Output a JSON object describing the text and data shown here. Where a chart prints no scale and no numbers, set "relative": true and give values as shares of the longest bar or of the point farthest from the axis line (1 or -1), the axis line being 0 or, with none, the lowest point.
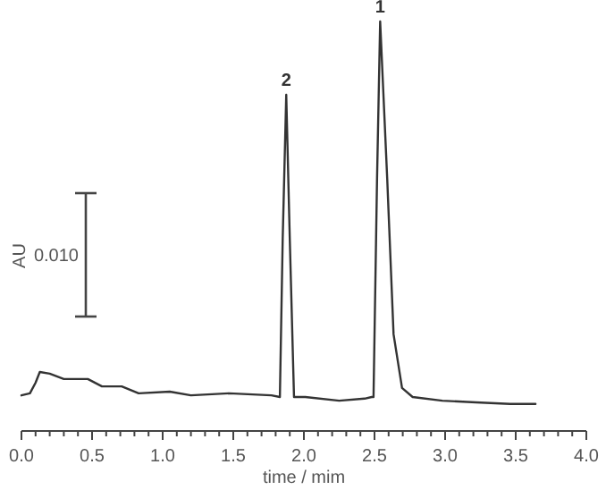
{
  "chart_data": {
    "type": "line",
    "relative": true,
    "xlabel": "time  / mim",
    "xlim": [
      0,
      4
    ],
    "xticks": [
      {
        "value": 0,
        "label": "0.0"
      },
      {
        "value": 0.1,
        "label": null
      },
      {
        "value": 0.2,
        "label": null
      },
      {
        "value": 0.3,
        "label": null
      },
      {
        "value": 0.4,
        "label": null
      },
      0.5,
      {
        "value": 0.6,
        "label": null
      },
      {
        "value": 0.7,
        "label": null
      },
      {
        "value": 0.8,
        "label": null
      },
      {
        "value": 0.9,
        "label": null
      },
      {
        "value": 1,
        "label": "1.0"
      },
      {
        "value": 1.1,
        "label": null
      },
      {
        "value": 1.2,
        "label": null
      },
      {
        "value": 1.3,
        "label": null
      },
      {
        "value": 1.4,
        "label": null
      },
      1.5,
      {
        "value": 1.6,
        "label": null
      },
      {
        "value": 1.7,
        "label": null
      },
      {
        "value": 1.8,
        "label": null
      },
      {
        "value": 1.9,
        "label": null
      },
      {
        "value": 2,
        "label": "2.0"
      },
      {
        "value": 2.1,
        "label": null
      },
      {
        "value": 2.2,
        "label": null
      },
      {
        "value": 2.3,
        "label": null
      },
      {
        "value": 2.4,
        "label": null
      },
      2.5,
      {
        "value": 2.6,
        "label": null
      },
      {
        "value": 2.7,
        "label": null
      },
      {
        "value": 2.8,
        "label": null
      },
      {
        "value": 2.9,
        "label": null
      },
      {
        "value": 3,
        "label": "3.0"
      },
      {
        "value": 3.1,
        "label": null
      },
      {
        "value": 3.2,
        "label": null
      },
      {
        "value": 3.3,
        "label": null
      },
      {
        "value": 3.4,
        "label": null
      },
      3.5,
      {
        "value": 3.6,
        "label": null
      },
      {
        "value": 3.7,
        "label": null
      },
      {
        "value": 3.8,
        "label": null
      },
      {
        "value": 3.9,
        "label": null
      },
      {
        "value": 4,
        "label": "4.0"
      }
    ],
    "series": [
      {
        "color": "#333333",
        "x": [
          0,
          0.06,
          0.1,
          0.13,
          0.2,
          0.3,
          0.47,
          0.57,
          0.71,
          0.83,
          1.05,
          1.2,
          1.47,
          1.77,
          1.83,
          1.85,
          1.875,
          1.9,
          1.93,
          2.01,
          2.25,
          2.43,
          2.48,
          2.493,
          2.518,
          2.54,
          2.59,
          2.635,
          2.695,
          2.77,
          2.98,
          3.22,
          3.46,
          3.64
        ],
        "values": [
          0.087,
          0.092,
          0.118,
          0.144,
          0.14,
          0.127,
          0.127,
          0.109,
          0.109,
          0.092,
          0.096,
          0.087,
          0.092,
          0.087,
          0.083,
          0.47,
          0.821,
          0.47,
          0.083,
          0.083,
          0.074,
          0.079,
          0.083,
          0.083,
          0.616,
          1.0,
          0.616,
          0.236,
          0.105,
          0.083,
          0.074,
          0.07,
          0.066,
          0.066
        ]
      }
    ],
    "annotations": [
      {
        "text": "1",
        "x": 2.54,
        "y": 1.0
      },
      {
        "text": "2",
        "x": 1.875,
        "y": 0.821
      },
      "AU",
      "0.010"
    ]
  }
}
